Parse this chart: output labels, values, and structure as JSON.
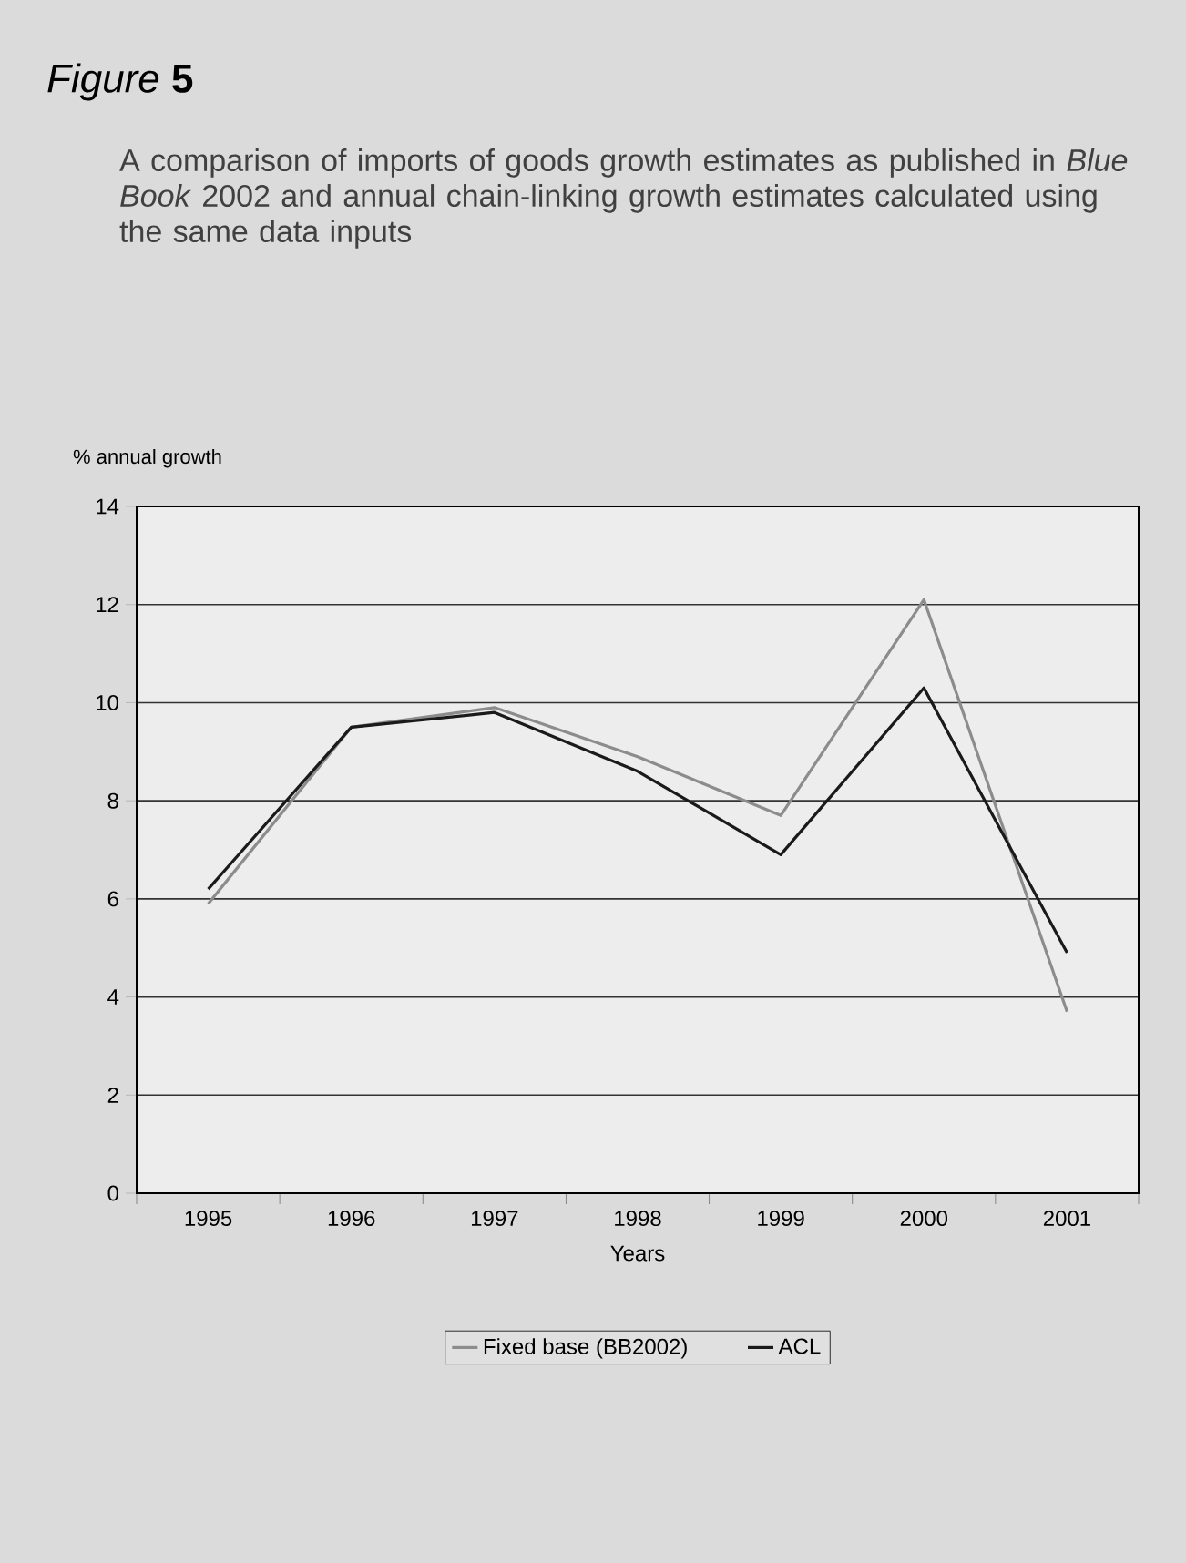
{
  "chart_data": {
    "type": "line",
    "title": "*Figure* **5**",
    "subtitle": "A comparison of imports of goods growth estimates as published in *Blue Book* 2002 and annual chain-linking growth estimates calculated using the same data inputs",
    "ylabel": "% annual growth",
    "xlabel": "Years",
    "categories": [
      "1995",
      "1996",
      "1997",
      "1998",
      "1999",
      "2000",
      "2001"
    ],
    "series": [
      {
        "name": "Fixed base (BB2002)",
        "color": "#8c8c8c",
        "values": [
          5.9,
          9.5,
          9.9,
          8.9,
          7.7,
          12.1,
          3.7
        ]
      },
      {
        "name": "ACL",
        "color": "#1a1a1a",
        "values": [
          6.2,
          9.5,
          9.8,
          8.6,
          6.9,
          10.3,
          4.9
        ]
      }
    ],
    "ylim": [
      0,
      14
    ],
    "yticks": [
      0,
      2,
      4,
      6,
      8,
      10,
      12,
      14
    ],
    "grid": "y",
    "legend": "bottom",
    "marker": "none",
    "line_style": "solid"
  }
}
